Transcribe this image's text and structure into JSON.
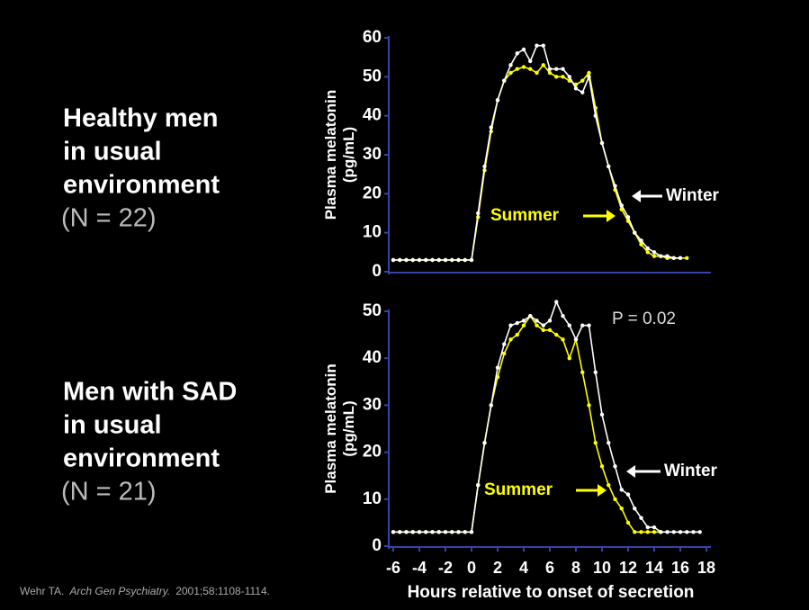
{
  "slide": {
    "left_labels": [
      {
        "lines": [
          "Healthy men",
          "in usual",
          "environment"
        ],
        "n": "(N = 22)"
      },
      {
        "lines": [
          "Men with SAD",
          "in usual",
          "environment"
        ],
        "n": "(N = 21)"
      }
    ],
    "citation": [
      "Wehr TA.",
      "Arch Gen Psychiatry.",
      "2001;58:1108-1114."
    ]
  },
  "chart_data": [
    {
      "type": "line",
      "ylabel": [
        "Plasma melatonin",
        "(pg/mL)"
      ],
      "xlim": [
        -6,
        18
      ],
      "ylim": [
        0,
        60
      ],
      "yticks": [
        0,
        10,
        20,
        30,
        40,
        50,
        60
      ],
      "x": [
        -6,
        -5.5,
        -5,
        -4.5,
        -4,
        -3.5,
        -3,
        -2.5,
        -2,
        -1.5,
        -1,
        -0.5,
        0,
        0.5,
        1,
        1.5,
        2,
        2.5,
        3,
        3.5,
        4,
        4.5,
        5,
        5.5,
        6,
        6.5,
        7,
        7.5,
        8,
        8.5,
        9,
        9.5,
        10,
        10.5,
        11,
        11.5,
        12,
        12.5,
        13,
        13.5,
        14,
        14.5,
        15,
        15.5,
        16,
        16.5
      ],
      "series": [
        {
          "name": "Winter",
          "color": "#ffffff",
          "values": [
            3,
            3,
            3,
            3,
            3,
            3,
            3,
            3,
            3,
            3,
            3,
            3,
            3,
            15,
            27,
            37,
            44,
            49,
            53,
            56,
            57,
            54,
            58,
            58,
            52,
            52,
            52,
            50,
            47,
            46,
            50,
            40,
            33,
            27,
            22,
            17,
            14,
            10,
            8,
            6,
            5,
            4,
            4,
            3.5,
            3.5,
            null
          ]
        },
        {
          "name": "Summer",
          "color": "#ffff00",
          "values": [
            3,
            3,
            3,
            3,
            3,
            3,
            3,
            3,
            3,
            3,
            3,
            3,
            3,
            14,
            26,
            36,
            44,
            49,
            51,
            52,
            52.5,
            52,
            51,
            53,
            51,
            50,
            50,
            49,
            48,
            49,
            51,
            42,
            33,
            27,
            21,
            16,
            13,
            10,
            7,
            5,
            4,
            4,
            3.5,
            3.5,
            3.5,
            3.5
          ]
        }
      ]
    },
    {
      "type": "line",
      "ylabel": [
        "Plasma melatonin",
        "(pg/mL)"
      ],
      "xlabel": "Hours relative to onset of secretion",
      "annotation": "P = 0.02",
      "xlim": [
        -6,
        18
      ],
      "xticks": [
        -6,
        -4,
        -2,
        0,
        2,
        4,
        6,
        8,
        10,
        12,
        14,
        16,
        18
      ],
      "ylim": [
        0,
        50
      ],
      "yticks": [
        0,
        10,
        20,
        30,
        40,
        50
      ],
      "x": [
        -6,
        -5.5,
        -5,
        -4.5,
        -4,
        -3.5,
        -3,
        -2.5,
        -2,
        -1.5,
        -1,
        -0.5,
        0,
        0.5,
        1,
        1.5,
        2,
        2.5,
        3,
        3.5,
        4,
        4.5,
        5,
        5.5,
        6,
        6.5,
        7,
        7.5,
        8,
        8.5,
        9,
        9.5,
        10,
        10.5,
        11,
        11.5,
        12,
        12.5,
        13,
        13.5,
        14,
        14.5,
        15,
        15.5,
        16,
        16.5,
        17,
        17.5,
        18
      ],
      "series": [
        {
          "name": "Winter",
          "color": "#ffffff",
          "values": [
            3,
            3,
            3,
            3,
            3,
            3,
            3,
            3,
            3,
            3,
            3,
            3,
            3,
            13,
            22,
            30,
            38,
            43,
            47,
            47.5,
            48,
            49,
            48,
            47,
            48,
            52,
            49,
            47,
            44,
            47,
            47,
            37,
            28,
            22,
            17,
            12,
            11,
            8,
            6,
            4,
            4,
            3,
            3,
            3,
            3,
            3,
            3,
            3,
            null
          ]
        },
        {
          "name": "Summer",
          "color": "#ffff00",
          "values": [
            3,
            3,
            3,
            3,
            3,
            3,
            3,
            3,
            3,
            3,
            3,
            3,
            3,
            13,
            22,
            30,
            36,
            41,
            44,
            45,
            47,
            49,
            47,
            46,
            46,
            45,
            44,
            40,
            44,
            37,
            30,
            22,
            17,
            13,
            10,
            8,
            5,
            3,
            3,
            3,
            3,
            3,
            null,
            null,
            null,
            null,
            null,
            null,
            null
          ]
        }
      ]
    }
  ]
}
